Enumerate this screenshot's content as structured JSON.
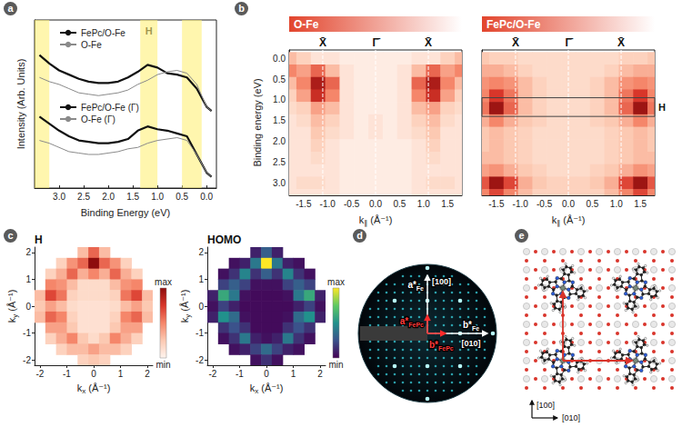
{
  "figure": {
    "panels": [
      "a",
      "b",
      "c",
      "d",
      "e"
    ]
  },
  "chart_data": [
    {
      "type": "line",
      "xlabel": "Binding Energy (eV)",
      "ylabel": "Intensity (Arb. Units)",
      "xlim": [
        3.5,
        -0.2
      ],
      "ylim": [
        0,
        12
      ],
      "xticks": [
        {
          "value": 3,
          "label": "3.0"
        },
        2.5,
        {
          "value": 2,
          "label": "2.0"
        },
        1.5,
        {
          "value": 1,
          "label": "1.0"
        },
        0.5,
        {
          "value": 0,
          "label": "0.0"
        }
      ],
      "tick_labels": "x",
      "legend": "upper left",
      "bands": [
        [
          3.5,
          3.2
        ],
        [
          1.35,
          1.0
        ],
        [
          0.5,
          0.1
        ]
      ],
      "annotations": [
        {
          "label": "H",
          "x": 1.175
        }
      ],
      "x": [
        3.4,
        3.2,
        3.0,
        2.8,
        2.6,
        2.4,
        2.2,
        2.0,
        1.8,
        1.6,
        1.4,
        1.2,
        1.0,
        0.8,
        0.6,
        0.4,
        0.2,
        0.0,
        -0.1
      ],
      "series": [
        {
          "name": "FePc/O-Fe",
          "color": "#111111",
          "line_style": "thick",
          "values": [
            9.5,
            8.9,
            8.4,
            8.1,
            7.8,
            7.6,
            7.5,
            7.5,
            7.6,
            7.9,
            8.3,
            8.8,
            8.6,
            8.2,
            8.1,
            7.9,
            7.1,
            5.8,
            5.5
          ]
        },
        {
          "name": "O-Fe",
          "color": "#8a8a8a",
          "line_style": "thin",
          "values": [
            7.9,
            7.6,
            7.4,
            7.1,
            6.8,
            6.7,
            6.6,
            6.7,
            6.8,
            7.0,
            7.4,
            7.7,
            8.1,
            8.3,
            8.4,
            8.2,
            7.4,
            5.8,
            5.5
          ]
        },
        {
          "name": "FePc/O-Fe (Γ)",
          "color": "#111111",
          "line_style": "thick",
          "values": [
            5.1,
            4.6,
            4.1,
            3.7,
            3.4,
            3.3,
            3.2,
            3.2,
            3.3,
            3.5,
            4.1,
            4.4,
            4.2,
            4.1,
            3.9,
            3.7,
            2.4,
            1.1,
            0.8
          ]
        },
        {
          "name": "O-Fe (Γ)",
          "color": "#8a8a8a",
          "line_style": "thin",
          "values": [
            3.4,
            3.2,
            2.9,
            2.6,
            2.5,
            2.4,
            2.4,
            2.5,
            2.6,
            2.8,
            2.9,
            3.2,
            3.4,
            3.5,
            3.6,
            3.4,
            2.4,
            1.1,
            0.8
          ]
        }
      ]
    },
    {
      "type": "heatmap",
      "title": "O-Fe",
      "color": "Reds",
      "zlim": [
        0,
        1
      ],
      "xlabel": "k∥ (Å⁻¹)",
      "ylabel": "Binding energy (eV)",
      "xlim": [
        -1.8,
        1.8
      ],
      "ylim": [
        3.3,
        -0.2
      ],
      "xticks": [
        -1.5,
        {
          "value": -1,
          "label": "-1.0"
        },
        -0.5,
        {
          "value": 0,
          "label": "0.0"
        },
        0.5,
        {
          "value": 1,
          "label": "1.0"
        },
        1.5
      ],
      "yticks": [
        {
          "value": 0,
          "label": "0.0"
        },
        0.5,
        {
          "value": 1,
          "label": "1.0"
        },
        1.5,
        {
          "value": 2,
          "label": "2.0"
        },
        2.5,
        {
          "value": 3,
          "label": "3.0"
        }
      ],
      "annotations": [
        {
          "label": "X̄",
          "x": -1.1
        },
        {
          "label": "Γ̄",
          "x": 0
        },
        {
          "label": "X̄",
          "x": 1.1
        }
      ],
      "x": [
        -1.8,
        -1.5,
        -1.2,
        -0.9,
        -0.6,
        -0.3,
        0,
        0.3,
        0.6,
        0.9,
        1.2,
        1.5,
        1.8
      ],
      "y": [
        0,
        0.3,
        0.6,
        0.9,
        1.2,
        1.5,
        1.8,
        2.1,
        2.4,
        2.7,
        3.0,
        3.3
      ],
      "values": [
        [
          0.3,
          0.2,
          0.1,
          0.1,
          0.05,
          0.05,
          0.05,
          0.05,
          0.05,
          0.1,
          0.1,
          0.2,
          0.3
        ],
        [
          0.5,
          0.4,
          0.6,
          0.3,
          0.1,
          0.05,
          0.05,
          0.05,
          0.1,
          0.3,
          0.6,
          0.4,
          0.5
        ],
        [
          0.3,
          0.5,
          0.9,
          0.6,
          0.1,
          0.05,
          0.05,
          0.05,
          0.1,
          0.6,
          0.9,
          0.5,
          0.3
        ],
        [
          0.2,
          0.4,
          0.8,
          0.5,
          0.1,
          0.05,
          0.05,
          0.05,
          0.1,
          0.5,
          0.8,
          0.4,
          0.2
        ],
        [
          0.15,
          0.2,
          0.4,
          0.3,
          0.1,
          0.05,
          0.05,
          0.05,
          0.1,
          0.3,
          0.4,
          0.2,
          0.15
        ],
        [
          0.1,
          0.15,
          0.3,
          0.2,
          0.1,
          0.05,
          0.1,
          0.05,
          0.1,
          0.2,
          0.3,
          0.15,
          0.1
        ],
        [
          0.1,
          0.1,
          0.25,
          0.15,
          0.1,
          0.05,
          0.1,
          0.05,
          0.1,
          0.15,
          0.25,
          0.1,
          0.1
        ],
        [
          0.1,
          0.1,
          0.2,
          0.1,
          0.05,
          0.05,
          0.05,
          0.05,
          0.05,
          0.1,
          0.2,
          0.1,
          0.1
        ],
        [
          0.1,
          0.1,
          0.15,
          0.1,
          0.05,
          0.05,
          0.05,
          0.05,
          0.05,
          0.1,
          0.15,
          0.1,
          0.1
        ],
        [
          0.1,
          0.1,
          0.1,
          0.1,
          0.05,
          0.05,
          0.05,
          0.05,
          0.05,
          0.1,
          0.1,
          0.1,
          0.1
        ],
        [
          0.1,
          0.15,
          0.15,
          0.1,
          0.05,
          0.05,
          0.05,
          0.05,
          0.05,
          0.1,
          0.15,
          0.15,
          0.1
        ],
        [
          0.1,
          0.1,
          0.1,
          0.1,
          0.05,
          0.05,
          0.05,
          0.05,
          0.05,
          0.1,
          0.1,
          0.1,
          0.1
        ]
      ]
    },
    {
      "type": "heatmap",
      "title": "FePc/O-Fe",
      "color": "Reds",
      "zlim": [
        0,
        1
      ],
      "xlabel": "k∥ (Å⁻¹)",
      "tick_labels": "x",
      "xlim": [
        -1.8,
        1.8
      ],
      "ylim": [
        3.3,
        -0.2
      ],
      "xticks": [
        -1.5,
        {
          "value": -1,
          "label": "-1.0"
        },
        -0.5,
        {
          "value": 0,
          "label": "0.0"
        },
        0.5,
        {
          "value": 1,
          "label": "1.0"
        },
        1.5
      ],
      "yticks": [
        {
          "value": 0,
          "label": "0.0"
        },
        0.5,
        {
          "value": 1,
          "label": "1.0"
        },
        1.5,
        {
          "value": 2,
          "label": "2.0"
        },
        2.5,
        {
          "value": 3,
          "label": "3.0"
        }
      ],
      "annotations": [
        {
          "label": "X̄",
          "x": -1.1
        },
        {
          "label": "Γ̄",
          "x": 0
        },
        {
          "label": "X̄",
          "x": 1.1
        }
      ],
      "box": {
        "label": "H",
        "ylim": [
          0.95,
          1.4
        ]
      },
      "x": [
        -1.8,
        -1.5,
        -1.2,
        -0.9,
        -0.6,
        -0.3,
        0,
        0.3,
        0.6,
        0.9,
        1.2,
        1.5,
        1.8
      ],
      "y": [
        0,
        0.3,
        0.6,
        0.9,
        1.2,
        1.5,
        1.8,
        2.1,
        2.4,
        2.7,
        3.0,
        3.3
      ],
      "values": [
        [
          0.25,
          0.2,
          0.2,
          0.15,
          0.15,
          0.15,
          0.15,
          0.15,
          0.15,
          0.15,
          0.2,
          0.2,
          0.25
        ],
        [
          0.35,
          0.35,
          0.3,
          0.2,
          0.15,
          0.15,
          0.15,
          0.15,
          0.15,
          0.2,
          0.3,
          0.35,
          0.35
        ],
        [
          0.45,
          0.5,
          0.45,
          0.3,
          0.2,
          0.15,
          0.15,
          0.15,
          0.2,
          0.3,
          0.45,
          0.5,
          0.45
        ],
        [
          0.5,
          0.75,
          0.55,
          0.3,
          0.2,
          0.15,
          0.15,
          0.15,
          0.2,
          0.3,
          0.55,
          0.75,
          0.5
        ],
        [
          0.55,
          0.95,
          0.6,
          0.3,
          0.2,
          0.15,
          0.15,
          0.15,
          0.2,
          0.3,
          0.6,
          0.95,
          0.55
        ],
        [
          0.35,
          0.5,
          0.35,
          0.25,
          0.2,
          0.15,
          0.15,
          0.15,
          0.2,
          0.25,
          0.35,
          0.5,
          0.35
        ],
        [
          0.25,
          0.3,
          0.25,
          0.2,
          0.15,
          0.15,
          0.15,
          0.15,
          0.15,
          0.2,
          0.25,
          0.3,
          0.25
        ],
        [
          0.25,
          0.3,
          0.25,
          0.2,
          0.15,
          0.15,
          0.15,
          0.15,
          0.15,
          0.2,
          0.25,
          0.3,
          0.25
        ],
        [
          0.3,
          0.3,
          0.25,
          0.2,
          0.15,
          0.15,
          0.15,
          0.15,
          0.15,
          0.2,
          0.25,
          0.3,
          0.3
        ],
        [
          0.4,
          0.45,
          0.35,
          0.25,
          0.2,
          0.15,
          0.15,
          0.15,
          0.2,
          0.25,
          0.35,
          0.45,
          0.4
        ],
        [
          0.65,
          0.95,
          0.7,
          0.35,
          0.25,
          0.2,
          0.2,
          0.2,
          0.25,
          0.35,
          0.7,
          0.95,
          0.65
        ],
        [
          0.5,
          0.7,
          0.5,
          0.3,
          0.2,
          0.2,
          0.2,
          0.2,
          0.2,
          0.3,
          0.5,
          0.7,
          0.5
        ]
      ]
    },
    {
      "type": "heatmap",
      "title": "H",
      "color": "Reds",
      "zlim": [
        0,
        1
      ],
      "colorbar": {
        "range": [
          0,
          1
        ],
        "ticks": [
          {
            "value": 0,
            "label": "min"
          },
          {
            "value": 1,
            "label": "max"
          }
        ]
      },
      "xlabel": "kx (Å⁻¹)",
      "ylabel": "ky (Å⁻¹)",
      "xlim": [
        -2.2,
        2.2
      ],
      "ylim": [
        -2.2,
        2.2
      ],
      "xticks": [
        -2,
        -1,
        0,
        1,
        2
      ],
      "yticks": [
        -2,
        -1,
        0,
        1,
        2
      ],
      "x": [
        -2,
        -1.6,
        -1.2,
        -0.8,
        -0.4,
        0,
        0.4,
        0.8,
        1.2,
        1.6,
        2
      ],
      "y": [
        2,
        1.6,
        1.2,
        0.8,
        0.4,
        0,
        -0.4,
        -0.8,
        -1.2,
        -1.6,
        -2
      ],
      "values": [
        [
          null,
          null,
          null,
          null,
          0.3,
          0.6,
          0.3,
          null,
          null,
          null,
          null
        ],
        [
          null,
          null,
          0.2,
          0.45,
          0.6,
          1.0,
          0.6,
          0.45,
          0.2,
          null,
          null
        ],
        [
          null,
          0.2,
          0.35,
          0.6,
          0.35,
          0.5,
          0.35,
          0.6,
          0.35,
          0.2,
          null
        ],
        [
          null,
          0.5,
          0.45,
          0.3,
          0.15,
          0.15,
          0.15,
          0.3,
          0.45,
          0.5,
          null
        ],
        [
          0.3,
          0.7,
          0.55,
          0.2,
          0.15,
          0.15,
          0.15,
          0.2,
          0.55,
          0.7,
          0.3
        ],
        [
          0.25,
          0.4,
          0.3,
          0.15,
          0.12,
          0.12,
          0.12,
          0.15,
          0.3,
          0.4,
          0.25
        ],
        [
          0.3,
          0.6,
          0.5,
          0.2,
          0.12,
          0.12,
          0.12,
          0.2,
          0.5,
          0.6,
          0.3
        ],
        [
          null,
          0.4,
          0.4,
          0.25,
          0.12,
          0.12,
          0.12,
          0.25,
          0.4,
          0.4,
          null
        ],
        [
          null,
          0.2,
          0.35,
          0.5,
          0.25,
          0.15,
          0.25,
          0.5,
          0.35,
          0.2,
          null
        ],
        [
          null,
          null,
          0.2,
          0.3,
          0.3,
          0.4,
          0.3,
          0.3,
          0.2,
          null,
          null
        ],
        [
          null,
          null,
          null,
          null,
          0.2,
          0.25,
          0.2,
          null,
          null,
          null,
          null
        ]
      ]
    },
    {
      "type": "heatmap",
      "title": "HOMO",
      "color": "viridis",
      "zlim": [
        0,
        1
      ],
      "colorbar": {
        "range": [
          0,
          1
        ],
        "ticks": [
          {
            "value": 0,
            "label": "min"
          },
          {
            "value": 1,
            "label": "max"
          }
        ]
      },
      "xlabel": "kx (Å⁻¹)",
      "ylabel": "ky (Å⁻¹)",
      "xlim": [
        -2.2,
        2.2
      ],
      "ylim": [
        -2.2,
        2.2
      ],
      "xticks": [
        -2,
        -1,
        0,
        1,
        2
      ],
      "yticks": [
        -2,
        -1,
        0,
        1,
        2
      ],
      "x": [
        -2,
        -1.6,
        -1.2,
        -0.8,
        -0.4,
        0,
        0.4,
        0.8,
        1.2,
        1.6,
        2
      ],
      "y": [
        2,
        1.6,
        1.2,
        0.8,
        0.4,
        0,
        -0.4,
        -0.8,
        -1.2,
        -1.6,
        -2
      ],
      "values": [
        [
          null,
          null,
          null,
          null,
          0.1,
          0.3,
          0.1,
          null,
          null,
          null,
          null
        ],
        [
          null,
          null,
          0.05,
          0.1,
          0.4,
          1.0,
          0.4,
          0.1,
          0.05,
          null,
          null
        ],
        [
          null,
          0.05,
          0.15,
          0.45,
          0.15,
          0.3,
          0.15,
          0.45,
          0.15,
          0.05,
          null
        ],
        [
          null,
          0.2,
          0.3,
          0.2,
          0.05,
          0.05,
          0.05,
          0.2,
          0.3,
          0.2,
          null
        ],
        [
          0.1,
          0.6,
          0.4,
          0.05,
          0.03,
          0.03,
          0.03,
          0.05,
          0.4,
          0.6,
          0.1
        ],
        [
          0.05,
          0.2,
          0.1,
          0.03,
          0.03,
          0.03,
          0.03,
          0.03,
          0.1,
          0.2,
          0.05
        ],
        [
          0.1,
          0.5,
          0.35,
          0.05,
          0.03,
          0.03,
          0.03,
          0.05,
          0.35,
          0.5,
          0.1
        ],
        [
          null,
          0.15,
          0.25,
          0.15,
          0.03,
          0.03,
          0.03,
          0.15,
          0.25,
          0.15,
          null
        ],
        [
          null,
          0.05,
          0.15,
          0.4,
          0.1,
          0.05,
          0.1,
          0.4,
          0.15,
          0.05,
          null
        ],
        [
          null,
          null,
          0.05,
          0.1,
          0.2,
          0.35,
          0.2,
          0.1,
          0.05,
          null,
          null
        ],
        [
          null,
          null,
          null,
          null,
          0.05,
          0.15,
          0.05,
          null,
          null,
          null,
          null
        ]
      ]
    }
  ],
  "leed": {
    "directions": {
      "vertical": "[100]",
      "horizontal": "[010]"
    },
    "vectors": [
      {
        "symbol": "a*",
        "sub": "Fe"
      },
      {
        "symbol": "b*",
        "sub": "Fe"
      },
      {
        "symbol": "a*",
        "sub": "FePc"
      },
      {
        "symbol": "b*",
        "sub": "FePc"
      }
    ]
  },
  "structure": {
    "directions": {
      "vertical": "[100]",
      "horizontal": "[010]"
    }
  }
}
